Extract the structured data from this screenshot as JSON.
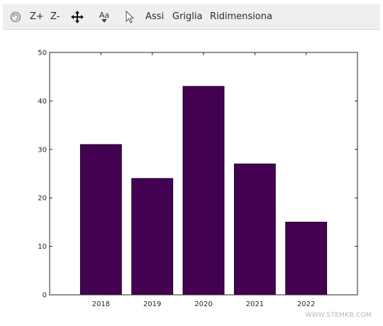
{
  "toolbar": {
    "zoom_in_label": "Z+",
    "zoom_out_label": "Z-",
    "font_icon_text": "Aa",
    "axes_label": "Assi",
    "grid_label": "Griglia",
    "resize_label": "Ridimensiona"
  },
  "watermark": "WWW.STEMKB.COM",
  "colors": {
    "bar_fill": "#430152",
    "toolbar_bg": "#efefef"
  },
  "icons": [
    "rotate-icon",
    "pan-icon",
    "font-size-icon",
    "pointer-icon"
  ],
  "chart_data": {
    "type": "bar",
    "title": "",
    "xlabel": "",
    "ylabel": "",
    "categories": [
      "2018",
      "2019",
      "2020",
      "2021",
      "2022"
    ],
    "values": [
      31,
      24,
      43,
      27,
      15
    ],
    "ylim": [
      0,
      50
    ],
    "yticks": [
      0,
      10,
      20,
      30,
      40,
      50
    ],
    "grid": false,
    "legend": "none"
  }
}
